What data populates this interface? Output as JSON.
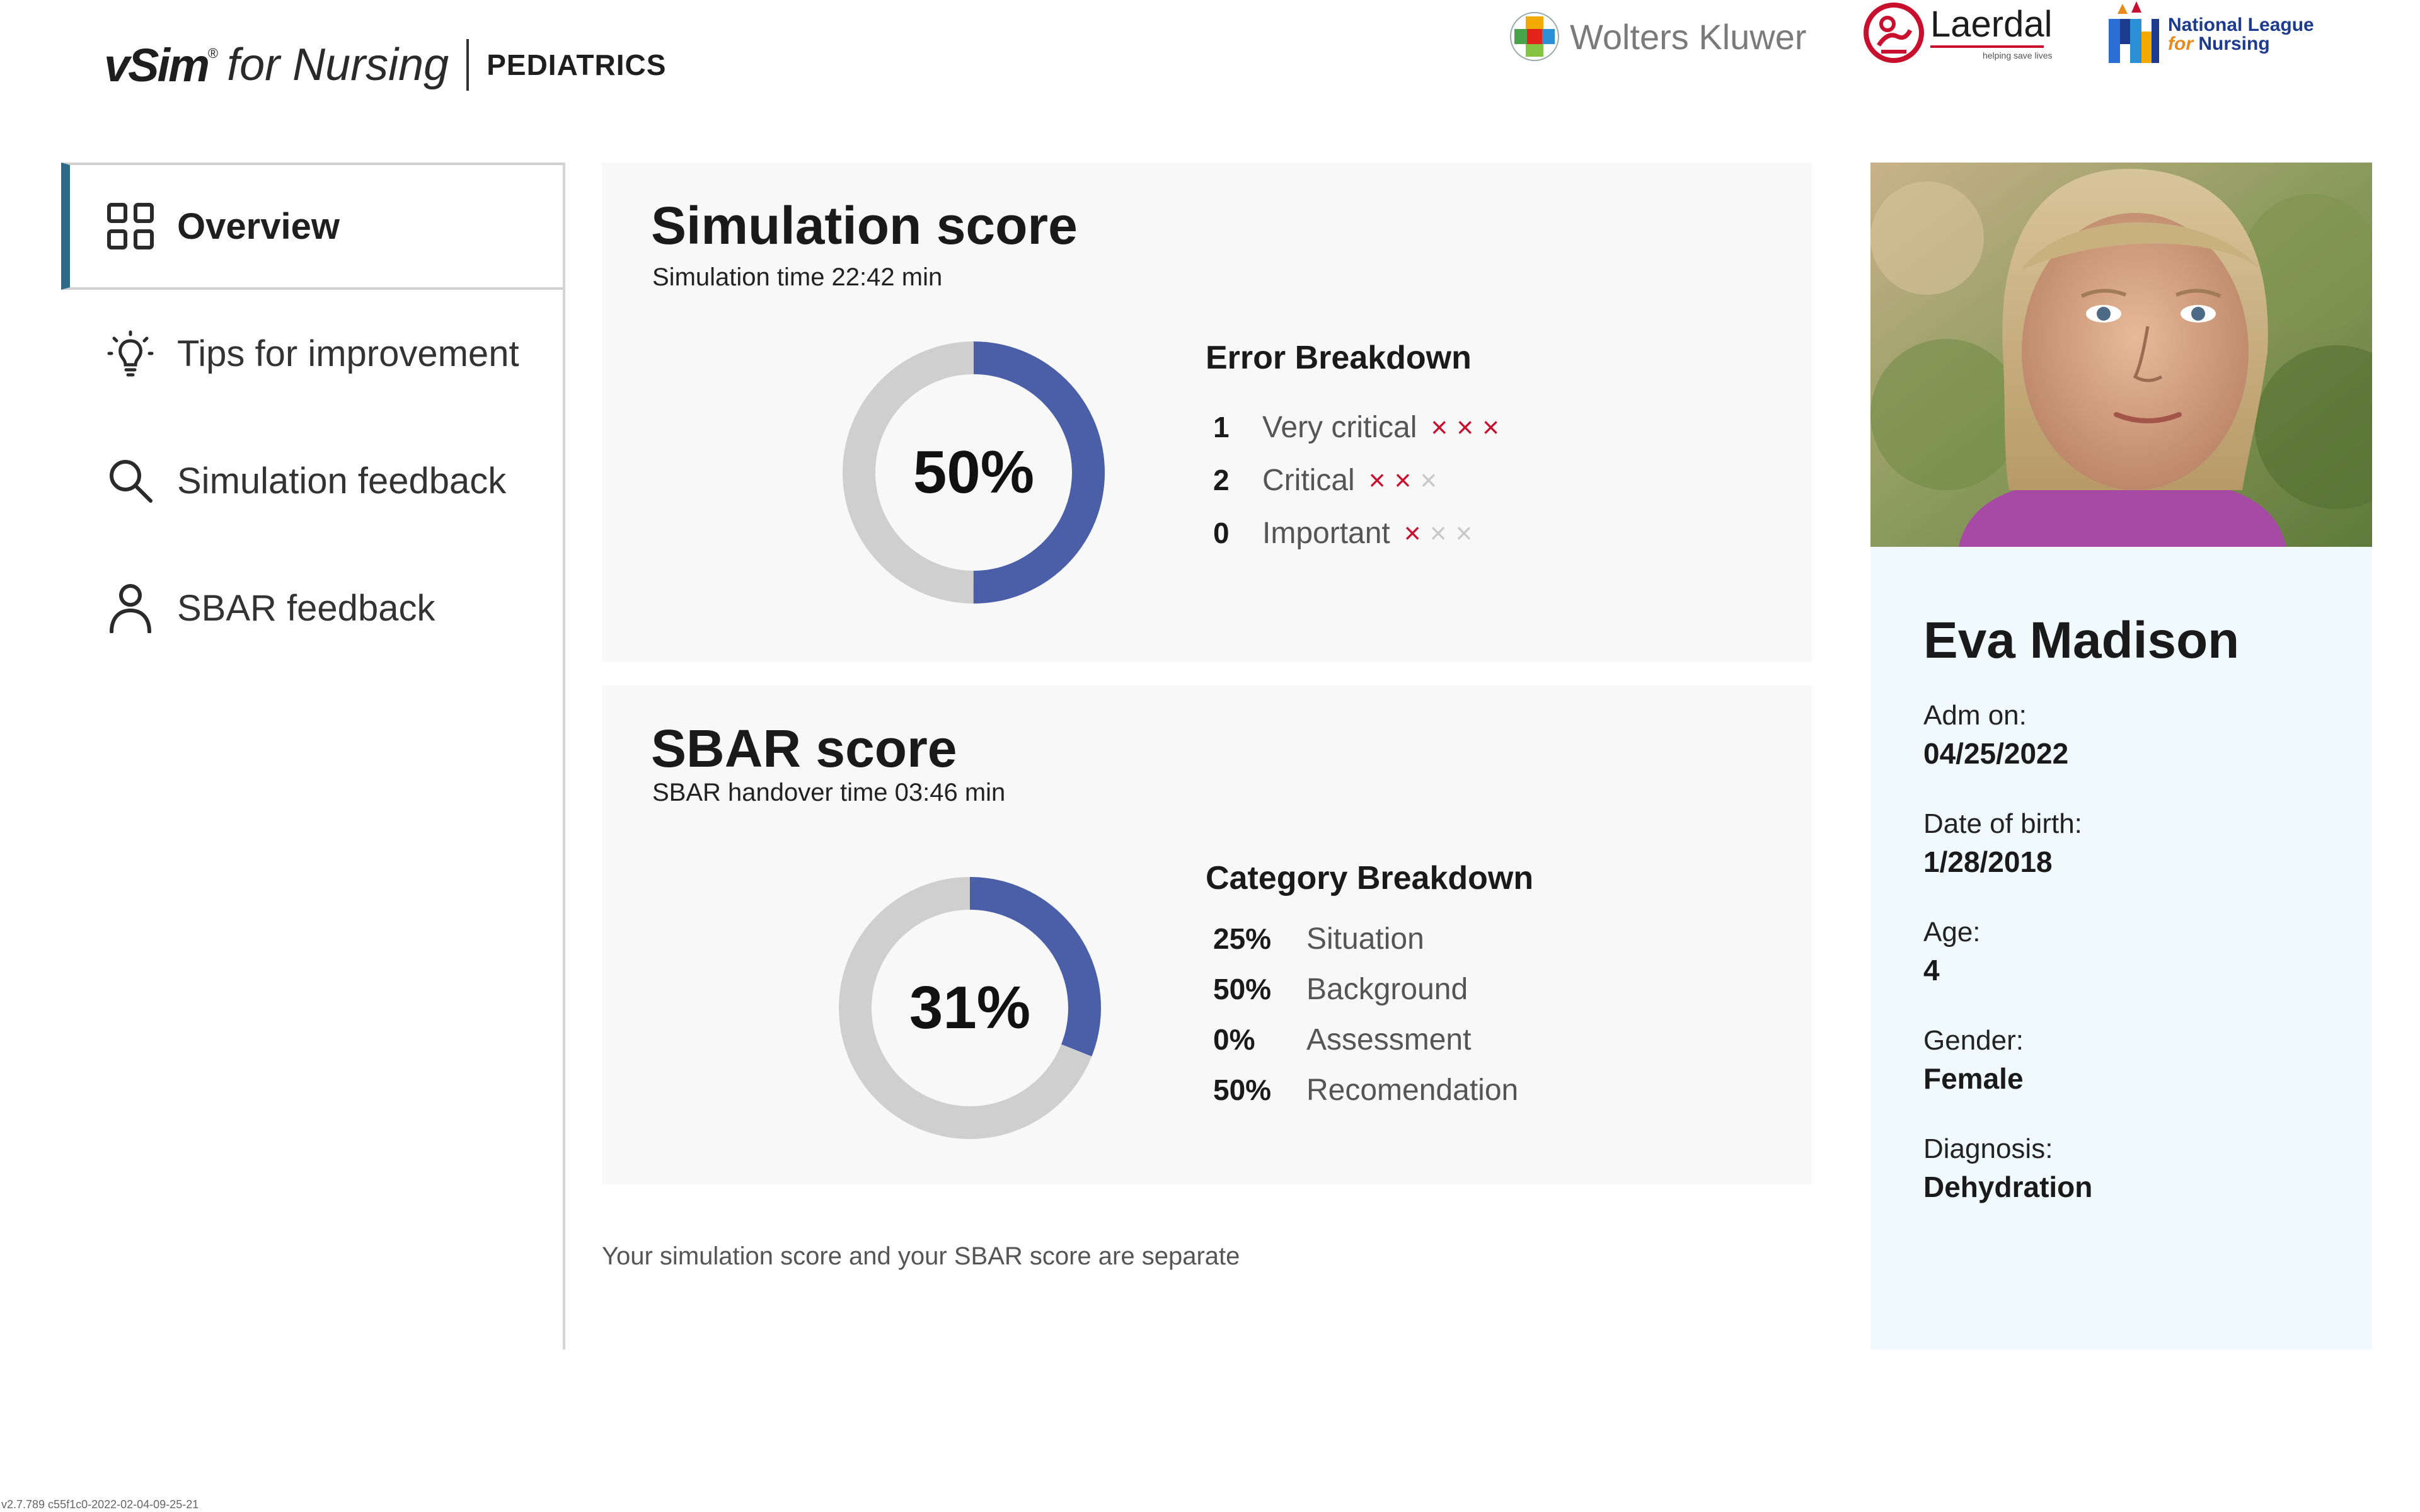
{
  "brand": {
    "vsim": "vSim",
    "reg": "®",
    "for_nursing": "for Nursing",
    "edition": "PEDIATRICS"
  },
  "partners": {
    "wolters_kluwer": "Wolters Kluwer",
    "laerdal": "Laerdal",
    "laerdal_tagline": "helping save lives",
    "nln_line1": "National League",
    "nln_line2_for": "for",
    "nln_line2_rest": " Nursing"
  },
  "sidebar": {
    "items": [
      {
        "label": "Overview",
        "icon": "grid-icon",
        "active": true
      },
      {
        "label": "Tips for improvement",
        "icon": "lightbulb-icon",
        "active": false
      },
      {
        "label": "Simulation feedback",
        "icon": "search-icon",
        "active": false
      },
      {
        "label": "SBAR feedback",
        "icon": "person-icon",
        "active": false
      }
    ]
  },
  "simulation": {
    "title": "Simulation score",
    "subtitle": "Simulation time 22:42 min",
    "score_label": "50%",
    "score_fraction": 0.5,
    "breakdown_title": "Error Breakdown",
    "errors": [
      {
        "count": "1",
        "label": "Very critical",
        "marks_on": 3
      },
      {
        "count": "2",
        "label": "Critical",
        "marks_on": 2
      },
      {
        "count": "0",
        "label": "Important",
        "marks_on": 1
      }
    ]
  },
  "sbar": {
    "title": "SBAR score",
    "subtitle": "SBAR handover time 03:46 min",
    "score_label": "31%",
    "score_fraction": 0.31,
    "breakdown_title": "Category Breakdown",
    "categories": [
      {
        "pct": "25%",
        "label": "Situation"
      },
      {
        "pct": "50%",
        "label": "Background"
      },
      {
        "pct": "0%",
        "label": "Assessment"
      },
      {
        "pct": "50%",
        "label": "Recomendation"
      }
    ]
  },
  "note": "Your simulation score and your SBAR score are separate",
  "patient": {
    "name": "Eva Madison",
    "fields": [
      {
        "label": "Adm on:",
        "value": "04/25/2022"
      },
      {
        "label": "Date of birth:",
        "value": "1/28/2018"
      },
      {
        "label": "Age:",
        "value": "4"
      },
      {
        "label": "Gender:",
        "value": "Female"
      },
      {
        "label": "Diagnosis:",
        "value": "Dehydration"
      }
    ]
  },
  "version": "v2.7.789 c55f1c0-2022-02-04-09-25-21",
  "colors": {
    "accent": "#2c6a8a",
    "donut_fill": "#4a5fa8",
    "donut_track": "#cfcfcf",
    "error_on": "#c8102e",
    "error_off": "#c9c9c9",
    "patient_panel": "#f0f9fb"
  }
}
